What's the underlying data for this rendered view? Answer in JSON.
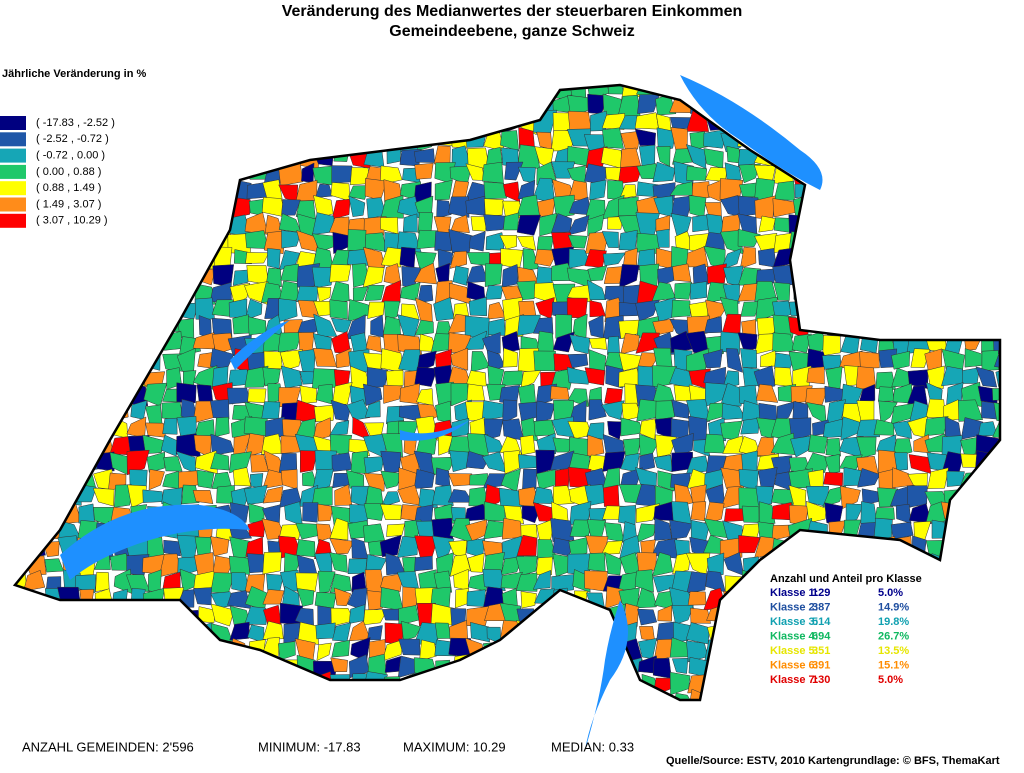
{
  "header": {
    "title": "Veränderung des Medianwertes der steuerbaren Einkommen",
    "subtitle": "Gemeindeebene, ganze Schweiz"
  },
  "legend": {
    "title": "Jährliche Veränderung in %",
    "items": [
      {
        "label": "( -17.83 , -2.52 )",
        "color": "#000080"
      },
      {
        "label": "( -2.52 , -0.72 )",
        "color": "#1f57a8"
      },
      {
        "label": "( -0.72 , 0.00 )",
        "color": "#16a6b6"
      },
      {
        "label": "( 0.00 , 0.88 )",
        "color": "#1fc86a"
      },
      {
        "label": "( 0.88 , 1.49 )",
        "color": "#ffff00"
      },
      {
        "label": "( 1.49 , 3.07 )",
        "color": "#ff8c1a"
      },
      {
        "label": "( 3.07 , 10.29 )",
        "color": "#ff0000"
      }
    ]
  },
  "class_table": {
    "title": "Anzahl und Anteil pro Klasse",
    "rows": [
      {
        "label": "Klasse 1:",
        "count": "129",
        "share": "5.0%",
        "color": "#00008b"
      },
      {
        "label": "Klasse 2:",
        "count": "387",
        "share": "14.9%",
        "color": "#1f4fa0"
      },
      {
        "label": "Klasse 3:",
        "count": "514",
        "share": "19.8%",
        "color": "#10a0b0"
      },
      {
        "label": "Klasse 4:",
        "count": "694",
        "share": "26.7%",
        "color": "#10b860"
      },
      {
        "label": "Klasse 5:",
        "count": "351",
        "share": "13.5%",
        "color": "#e6e600"
      },
      {
        "label": "Klasse 6:",
        "count": "391",
        "share": "15.1%",
        "color": "#ff8c00"
      },
      {
        "label": "Klasse 7:",
        "count": "130",
        "share": "5.0%",
        "color": "#e00000"
      }
    ]
  },
  "footer": {
    "stats": [
      "ANZAHL GEMEINDEN: 2'596",
      "MINIMUM: -17.83",
      "MAXIMUM: 10.29",
      "MEDIAN: 0.33"
    ],
    "source": "Quelle/Source: ESTV, 2010 Kartengrundlage: © BFS, ThemaKart"
  }
}
